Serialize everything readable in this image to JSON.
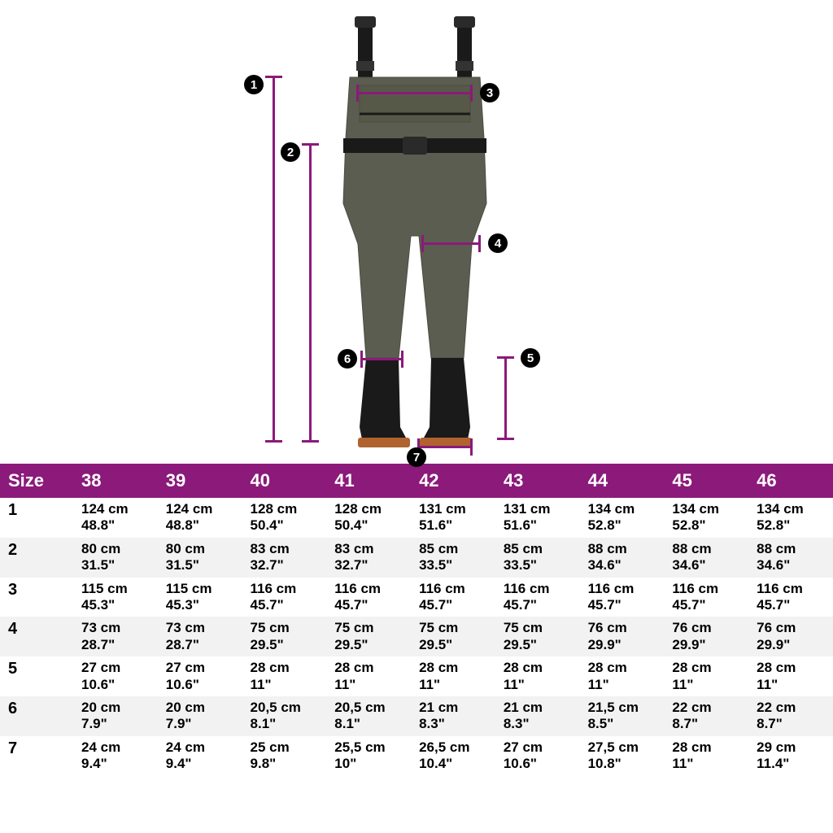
{
  "header": {
    "label": "Size",
    "sizes": [
      "38",
      "39",
      "40",
      "41",
      "42",
      "43",
      "44",
      "45",
      "46"
    ]
  },
  "rows": [
    {
      "id": "1",
      "cells": [
        {
          "cm": "124 cm",
          "in": "48.8\""
        },
        {
          "cm": "124 cm",
          "in": "48.8\""
        },
        {
          "cm": "128 cm",
          "in": "50.4\""
        },
        {
          "cm": "128 cm",
          "in": "50.4\""
        },
        {
          "cm": "131 cm",
          "in": "51.6\""
        },
        {
          "cm": "131 cm",
          "in": "51.6\""
        },
        {
          "cm": "134 cm",
          "in": "52.8\""
        },
        {
          "cm": "134 cm",
          "in": "52.8\""
        },
        {
          "cm": "134 cm",
          "in": "52.8\""
        }
      ]
    },
    {
      "id": "2",
      "cells": [
        {
          "cm": "80 cm",
          "in": "31.5\""
        },
        {
          "cm": "80 cm",
          "in": "31.5\""
        },
        {
          "cm": "83 cm",
          "in": "32.7\""
        },
        {
          "cm": "83 cm",
          "in": "32.7\""
        },
        {
          "cm": "85 cm",
          "in": "33.5\""
        },
        {
          "cm": "85 cm",
          "in": "33.5\""
        },
        {
          "cm": "88 cm",
          "in": "34.6\""
        },
        {
          "cm": "88 cm",
          "in": "34.6\""
        },
        {
          "cm": "88 cm",
          "in": "34.6\""
        }
      ]
    },
    {
      "id": "3",
      "cells": [
        {
          "cm": "115 cm",
          "in": "45.3\""
        },
        {
          "cm": "115 cm",
          "in": "45.3\""
        },
        {
          "cm": "116 cm",
          "in": "45.7\""
        },
        {
          "cm": "116 cm",
          "in": "45.7\""
        },
        {
          "cm": "116 cm",
          "in": "45.7\""
        },
        {
          "cm": "116 cm",
          "in": "45.7\""
        },
        {
          "cm": "116 cm",
          "in": "45.7\""
        },
        {
          "cm": "116 cm",
          "in": "45.7\""
        },
        {
          "cm": "116 cm",
          "in": "45.7\""
        }
      ]
    },
    {
      "id": "4",
      "cells": [
        {
          "cm": "73 cm",
          "in": "28.7\""
        },
        {
          "cm": "73 cm",
          "in": "28.7\""
        },
        {
          "cm": "75 cm",
          "in": "29.5\""
        },
        {
          "cm": "75 cm",
          "in": "29.5\""
        },
        {
          "cm": "75 cm",
          "in": "29.5\""
        },
        {
          "cm": "75 cm",
          "in": "29.5\""
        },
        {
          "cm": "76 cm",
          "in": "29.9\""
        },
        {
          "cm": "76 cm",
          "in": "29.9\""
        },
        {
          "cm": "76 cm",
          "in": "29.9\""
        }
      ]
    },
    {
      "id": "5",
      "cells": [
        {
          "cm": "27 cm",
          "in": "10.6\""
        },
        {
          "cm": "27 cm",
          "in": "10.6\""
        },
        {
          "cm": "28 cm",
          "in": "11\""
        },
        {
          "cm": "28 cm",
          "in": "11\""
        },
        {
          "cm": "28 cm",
          "in": "11\""
        },
        {
          "cm": "28 cm",
          "in": "11\""
        },
        {
          "cm": "28 cm",
          "in": "11\""
        },
        {
          "cm": "28 cm",
          "in": "11\""
        },
        {
          "cm": "28 cm",
          "in": "11\""
        }
      ]
    },
    {
      "id": "6",
      "cells": [
        {
          "cm": "20 cm",
          "in": "7.9\""
        },
        {
          "cm": "20 cm",
          "in": "7.9\""
        },
        {
          "cm": "20,5 cm",
          "in": "8.1\""
        },
        {
          "cm": "20,5 cm",
          "in": "8.1\""
        },
        {
          "cm": "21 cm",
          "in": "8.3\""
        },
        {
          "cm": "21 cm",
          "in": "8.3\""
        },
        {
          "cm": "21,5 cm",
          "in": "8.5\""
        },
        {
          "cm": "22 cm",
          "in": "8.7\""
        },
        {
          "cm": "22 cm",
          "in": "8.7\""
        }
      ]
    },
    {
      "id": "7",
      "cells": [
        {
          "cm": "24 cm",
          "in": "9.4\""
        },
        {
          "cm": "24 cm",
          "in": "9.4\""
        },
        {
          "cm": "25 cm",
          "in": "9.8\""
        },
        {
          "cm": "25,5 cm",
          "in": "10\""
        },
        {
          "cm": "26,5 cm",
          "in": "10.4\""
        },
        {
          "cm": "27 cm",
          "in": "10.6\""
        },
        {
          "cm": "27,5 cm",
          "in": "10.8\""
        },
        {
          "cm": "28 cm",
          "in": "11\""
        },
        {
          "cm": "29 cm",
          "in": "11.4\""
        }
      ]
    }
  ],
  "diagram": {
    "badges": [
      "1",
      "2",
      "3",
      "4",
      "5",
      "6",
      "7"
    ],
    "colors": {
      "accent": "#8b1a7a",
      "wader": "#5a5d4f",
      "boot": "#1a1a1a",
      "sole": "#b0632e"
    }
  }
}
